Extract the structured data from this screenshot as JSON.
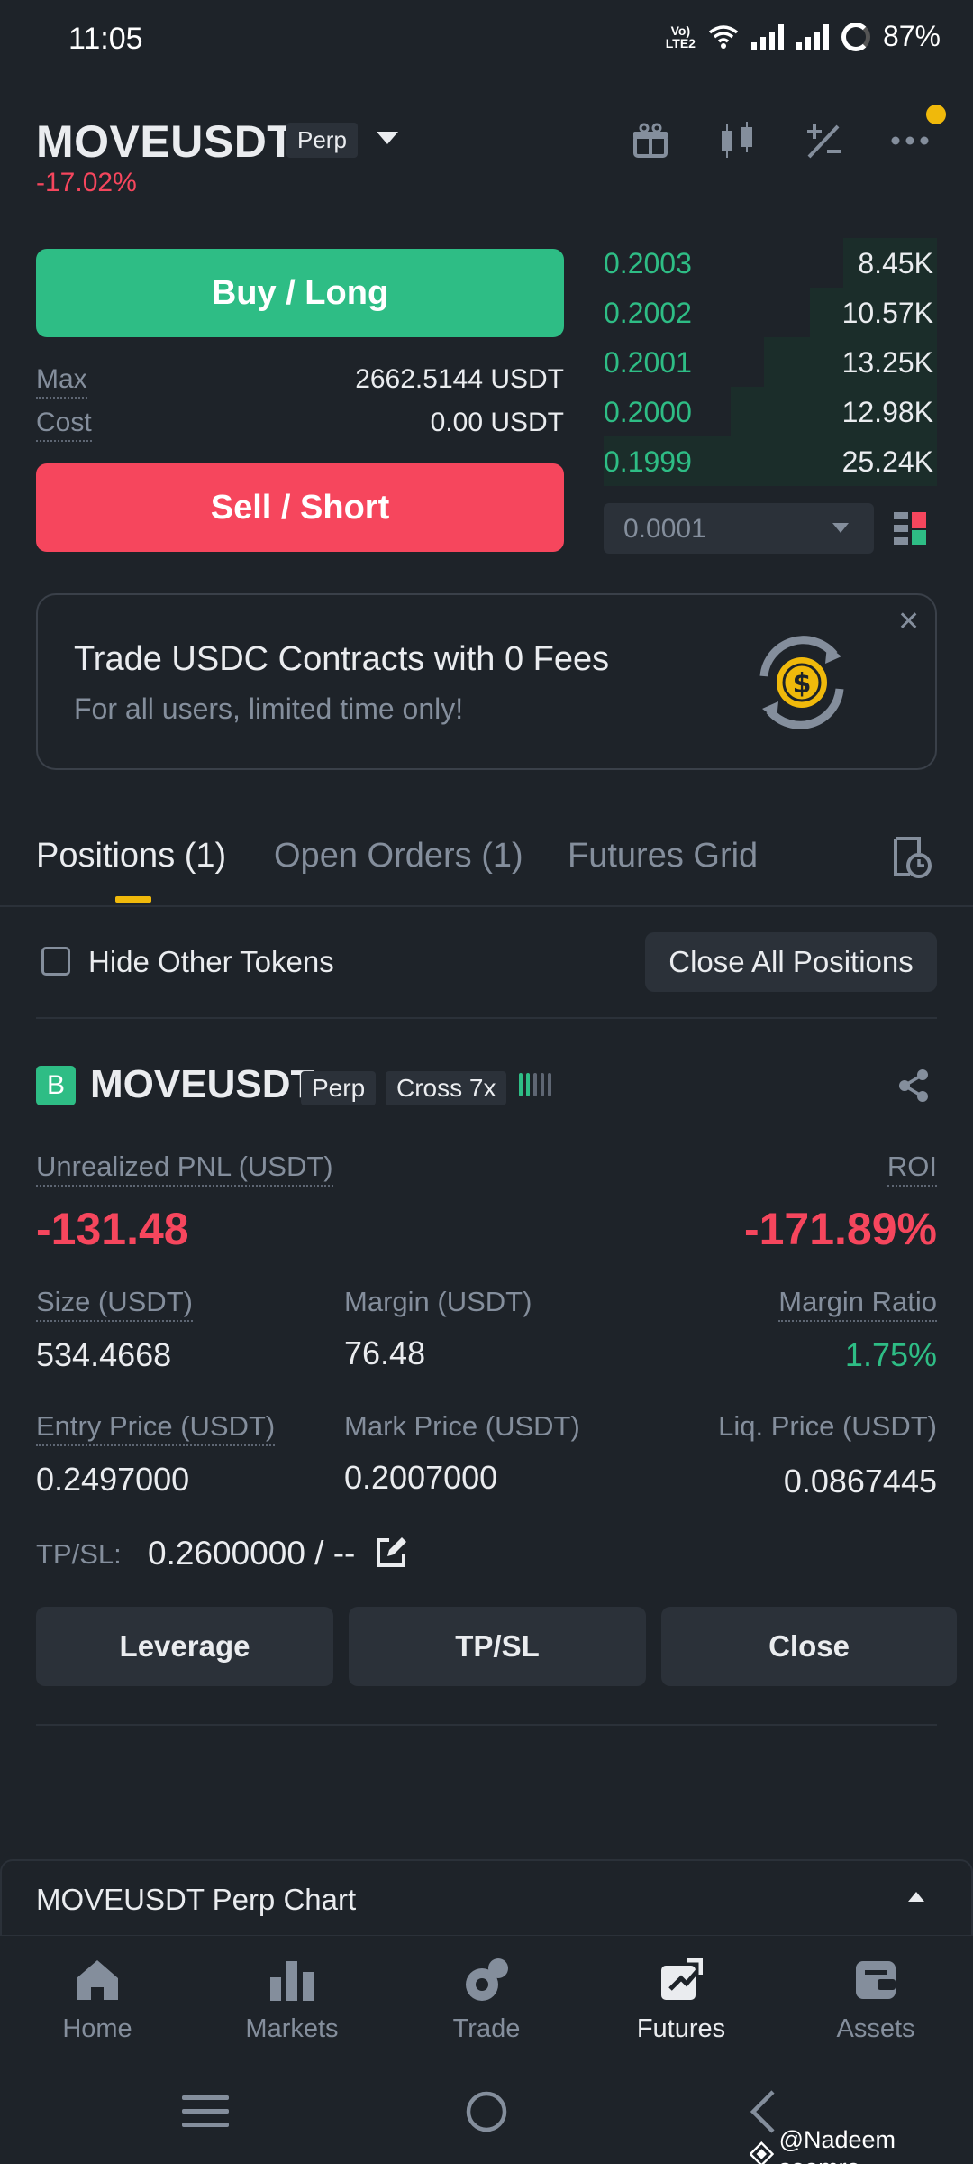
{
  "status_bar": {
    "time": "11:05",
    "network_label": "LTE2",
    "volte_label": "Vo)",
    "battery": "87%"
  },
  "header": {
    "symbol": "MOVEUSDT",
    "contract_type": "Perp",
    "change": "-17.02%"
  },
  "trade": {
    "buy_label": "Buy / Long",
    "sell_label": "Sell / Short",
    "max_label": "Max",
    "max_value": "2662.5144 USDT",
    "cost_label": "Cost",
    "cost_value": "0.00 USDT"
  },
  "orderbook": {
    "rows": [
      {
        "price": "0.2003",
        "qty": "8.45K",
        "depth_fraction": 0.28
      },
      {
        "price": "0.2002",
        "qty": "10.57K",
        "depth_fraction": 0.38
      },
      {
        "price": "0.2001",
        "qty": "13.25K",
        "depth_fraction": 0.52
      },
      {
        "price": "0.2000",
        "qty": "12.98K",
        "depth_fraction": 0.62
      },
      {
        "price": "0.1999",
        "qty": "25.24K",
        "depth_fraction": 1.0
      }
    ],
    "precision": "0.0001"
  },
  "promo": {
    "title": "Trade USDC Contracts with 0 Fees",
    "subtitle": "For all users, limited time only!",
    "close_glyph": "✕"
  },
  "tabs": {
    "positions": "Positions (1)",
    "open_orders": "Open Orders (1)",
    "futures_grid": "Futures Grid"
  },
  "filter": {
    "hide_label": "Hide Other Tokens",
    "close_all_label": "Close All Positions"
  },
  "position": {
    "side_badge": "B",
    "symbol": "MOVEUSDT",
    "contract_type": "Perp",
    "margin_mode": "Cross 7x",
    "unrealized_label": "Unrealized PNL (USDT)",
    "unrealized_value": "-131.48",
    "roi_label": "ROI",
    "roi_value": "-171.89%",
    "size_label": "Size (USDT)",
    "size_value": "534.4668",
    "margin_label": "Margin (USDT)",
    "margin_value": "76.48",
    "margin_ratio_label": "Margin Ratio",
    "margin_ratio_value": "1.75%",
    "entry_label": "Entry Price (USDT)",
    "entry_value": "0.2497000",
    "mark_label": "Mark Price (USDT)",
    "mark_value": "0.2007000",
    "liq_label": "Liq. Price (USDT)",
    "liq_value": "0.0867445",
    "tpsl_label": "TP/SL:",
    "tpsl_value": "0.2600000 / --",
    "btn_leverage": "Leverage",
    "btn_tpsl": "TP/SL",
    "btn_close": "Close"
  },
  "chart_bar": {
    "label": "MOVEUSDT Perp Chart"
  },
  "bottom_nav": {
    "items": [
      {
        "label": "Home",
        "icon": "home-icon"
      },
      {
        "label": "Markets",
        "icon": "markets-icon"
      },
      {
        "label": "Trade",
        "icon": "trade-icon"
      },
      {
        "label": "Futures",
        "icon": "futures-icon"
      },
      {
        "label": "Assets",
        "icon": "assets-icon"
      }
    ],
    "active": "Futures"
  },
  "watermark": "@Nadeem soomro",
  "colors": {
    "background": "#1e2329",
    "buy": "#2ebd85",
    "sell": "#f6465d",
    "accent": "#f0b90b",
    "muted": "#848e9c"
  }
}
